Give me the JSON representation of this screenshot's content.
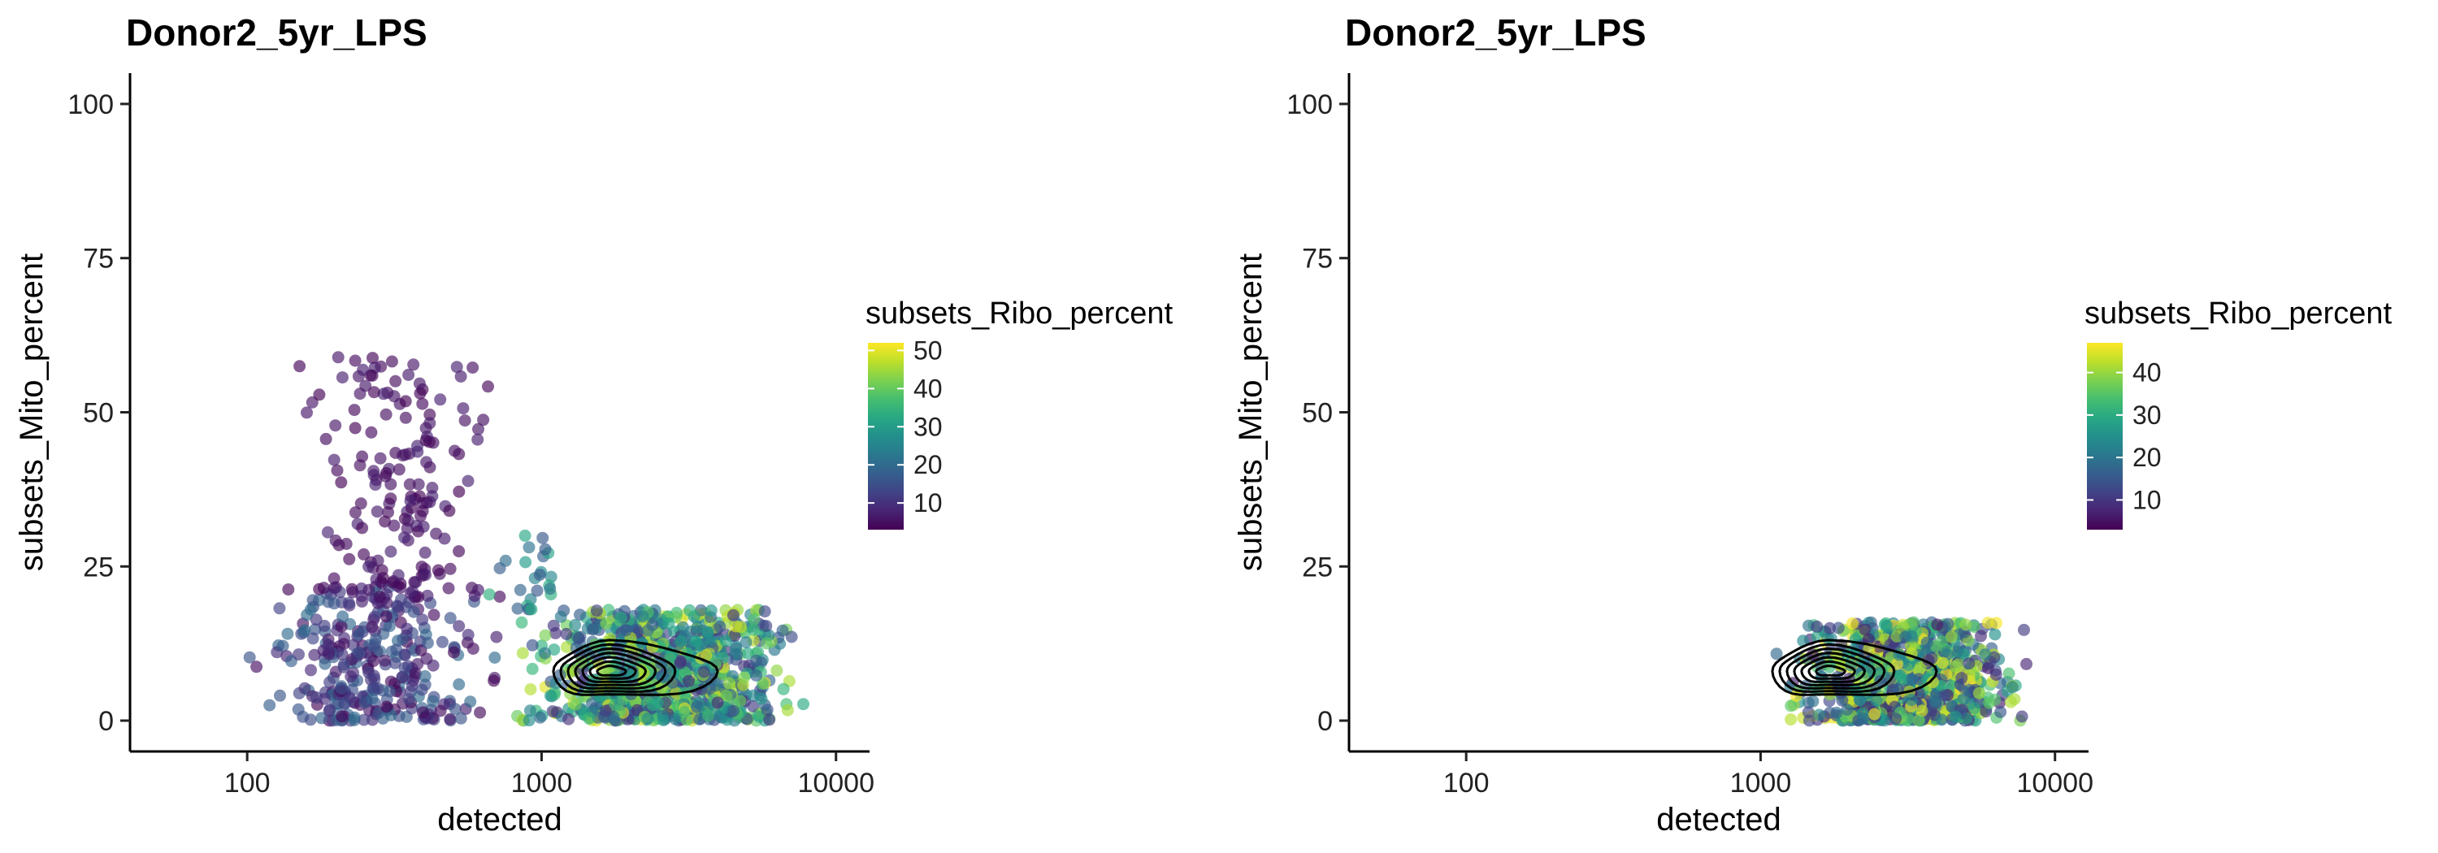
{
  "chart_data": [
    {
      "type": "scatter",
      "title": "Donor2_5yr_LPS",
      "xlabel": "detected",
      "ylabel": "subsets_Mito_percent",
      "x_scale": "log10",
      "xlim": [
        40,
        13000
      ],
      "ylim": [
        -5,
        105
      ],
      "x_ticks": [
        100,
        1000,
        10000
      ],
      "x_tick_labels": [
        "100",
        "1000",
        "10000"
      ],
      "y_ticks": [
        0,
        25,
        50,
        75,
        100
      ],
      "y_tick_labels": [
        "0",
        "25",
        "50",
        "75",
        "100"
      ],
      "grid": false,
      "legend": {
        "title": "subsets_Ribo_percent",
        "placement": "right",
        "colormap": "viridis",
        "min": 3,
        "max": 52,
        "ticks": [
          10,
          20,
          30,
          40,
          50
        ],
        "tick_labels": [
          "10",
          "20",
          "30",
          "40",
          "50"
        ]
      },
      "clusters": [
        {
          "x_range": [
            80,
            900
          ],
          "y_range": [
            0,
            22
          ],
          "color_range": [
            3,
            20
          ],
          "count": 300
        },
        {
          "x_range": [
            120,
            900
          ],
          "y_range": [
            20,
            59
          ],
          "color_range": [
            3,
            8
          ],
          "count": 170
        },
        {
          "x_range": [
            700,
            9500
          ],
          "y_range": [
            0,
            18
          ],
          "color_range": [
            8,
            50
          ],
          "count": 900
        },
        {
          "x_range": [
            600,
            1400
          ],
          "y_range": [
            18,
            30
          ],
          "color_range": [
            15,
            35
          ],
          "count": 25
        }
      ],
      "contour": {
        "center_x": 1700,
        "center_y": 8,
        "levels": 7,
        "color": "#000000"
      }
    },
    {
      "type": "scatter",
      "title": "Donor2_5yr_LPS",
      "xlabel": "detected",
      "ylabel": "subsets_Mito_percent",
      "x_scale": "log10",
      "xlim": [
        40,
        13000
      ],
      "ylim": [
        -5,
        105
      ],
      "x_ticks": [
        100,
        1000,
        10000
      ],
      "x_tick_labels": [
        "100",
        "1000",
        "10000"
      ],
      "y_ticks": [
        0,
        25,
        50,
        75,
        100
      ],
      "y_tick_labels": [
        "0",
        "25",
        "50",
        "75",
        "100"
      ],
      "grid": false,
      "legend": {
        "title": "subsets_Ribo_percent",
        "placement": "right",
        "colormap": "viridis",
        "min": 3,
        "max": 47,
        "ticks": [
          10,
          20,
          30,
          40
        ],
        "tick_labels": [
          "10",
          "20",
          "30",
          "40"
        ]
      },
      "clusters": [
        {
          "x_range": [
            1000,
            9500
          ],
          "y_range": [
            0,
            16
          ],
          "color_range": [
            5,
            47
          ],
          "count": 900
        }
      ],
      "contour": {
        "center_x": 1700,
        "center_y": 8,
        "levels": 7,
        "color": "#000000"
      }
    }
  ]
}
